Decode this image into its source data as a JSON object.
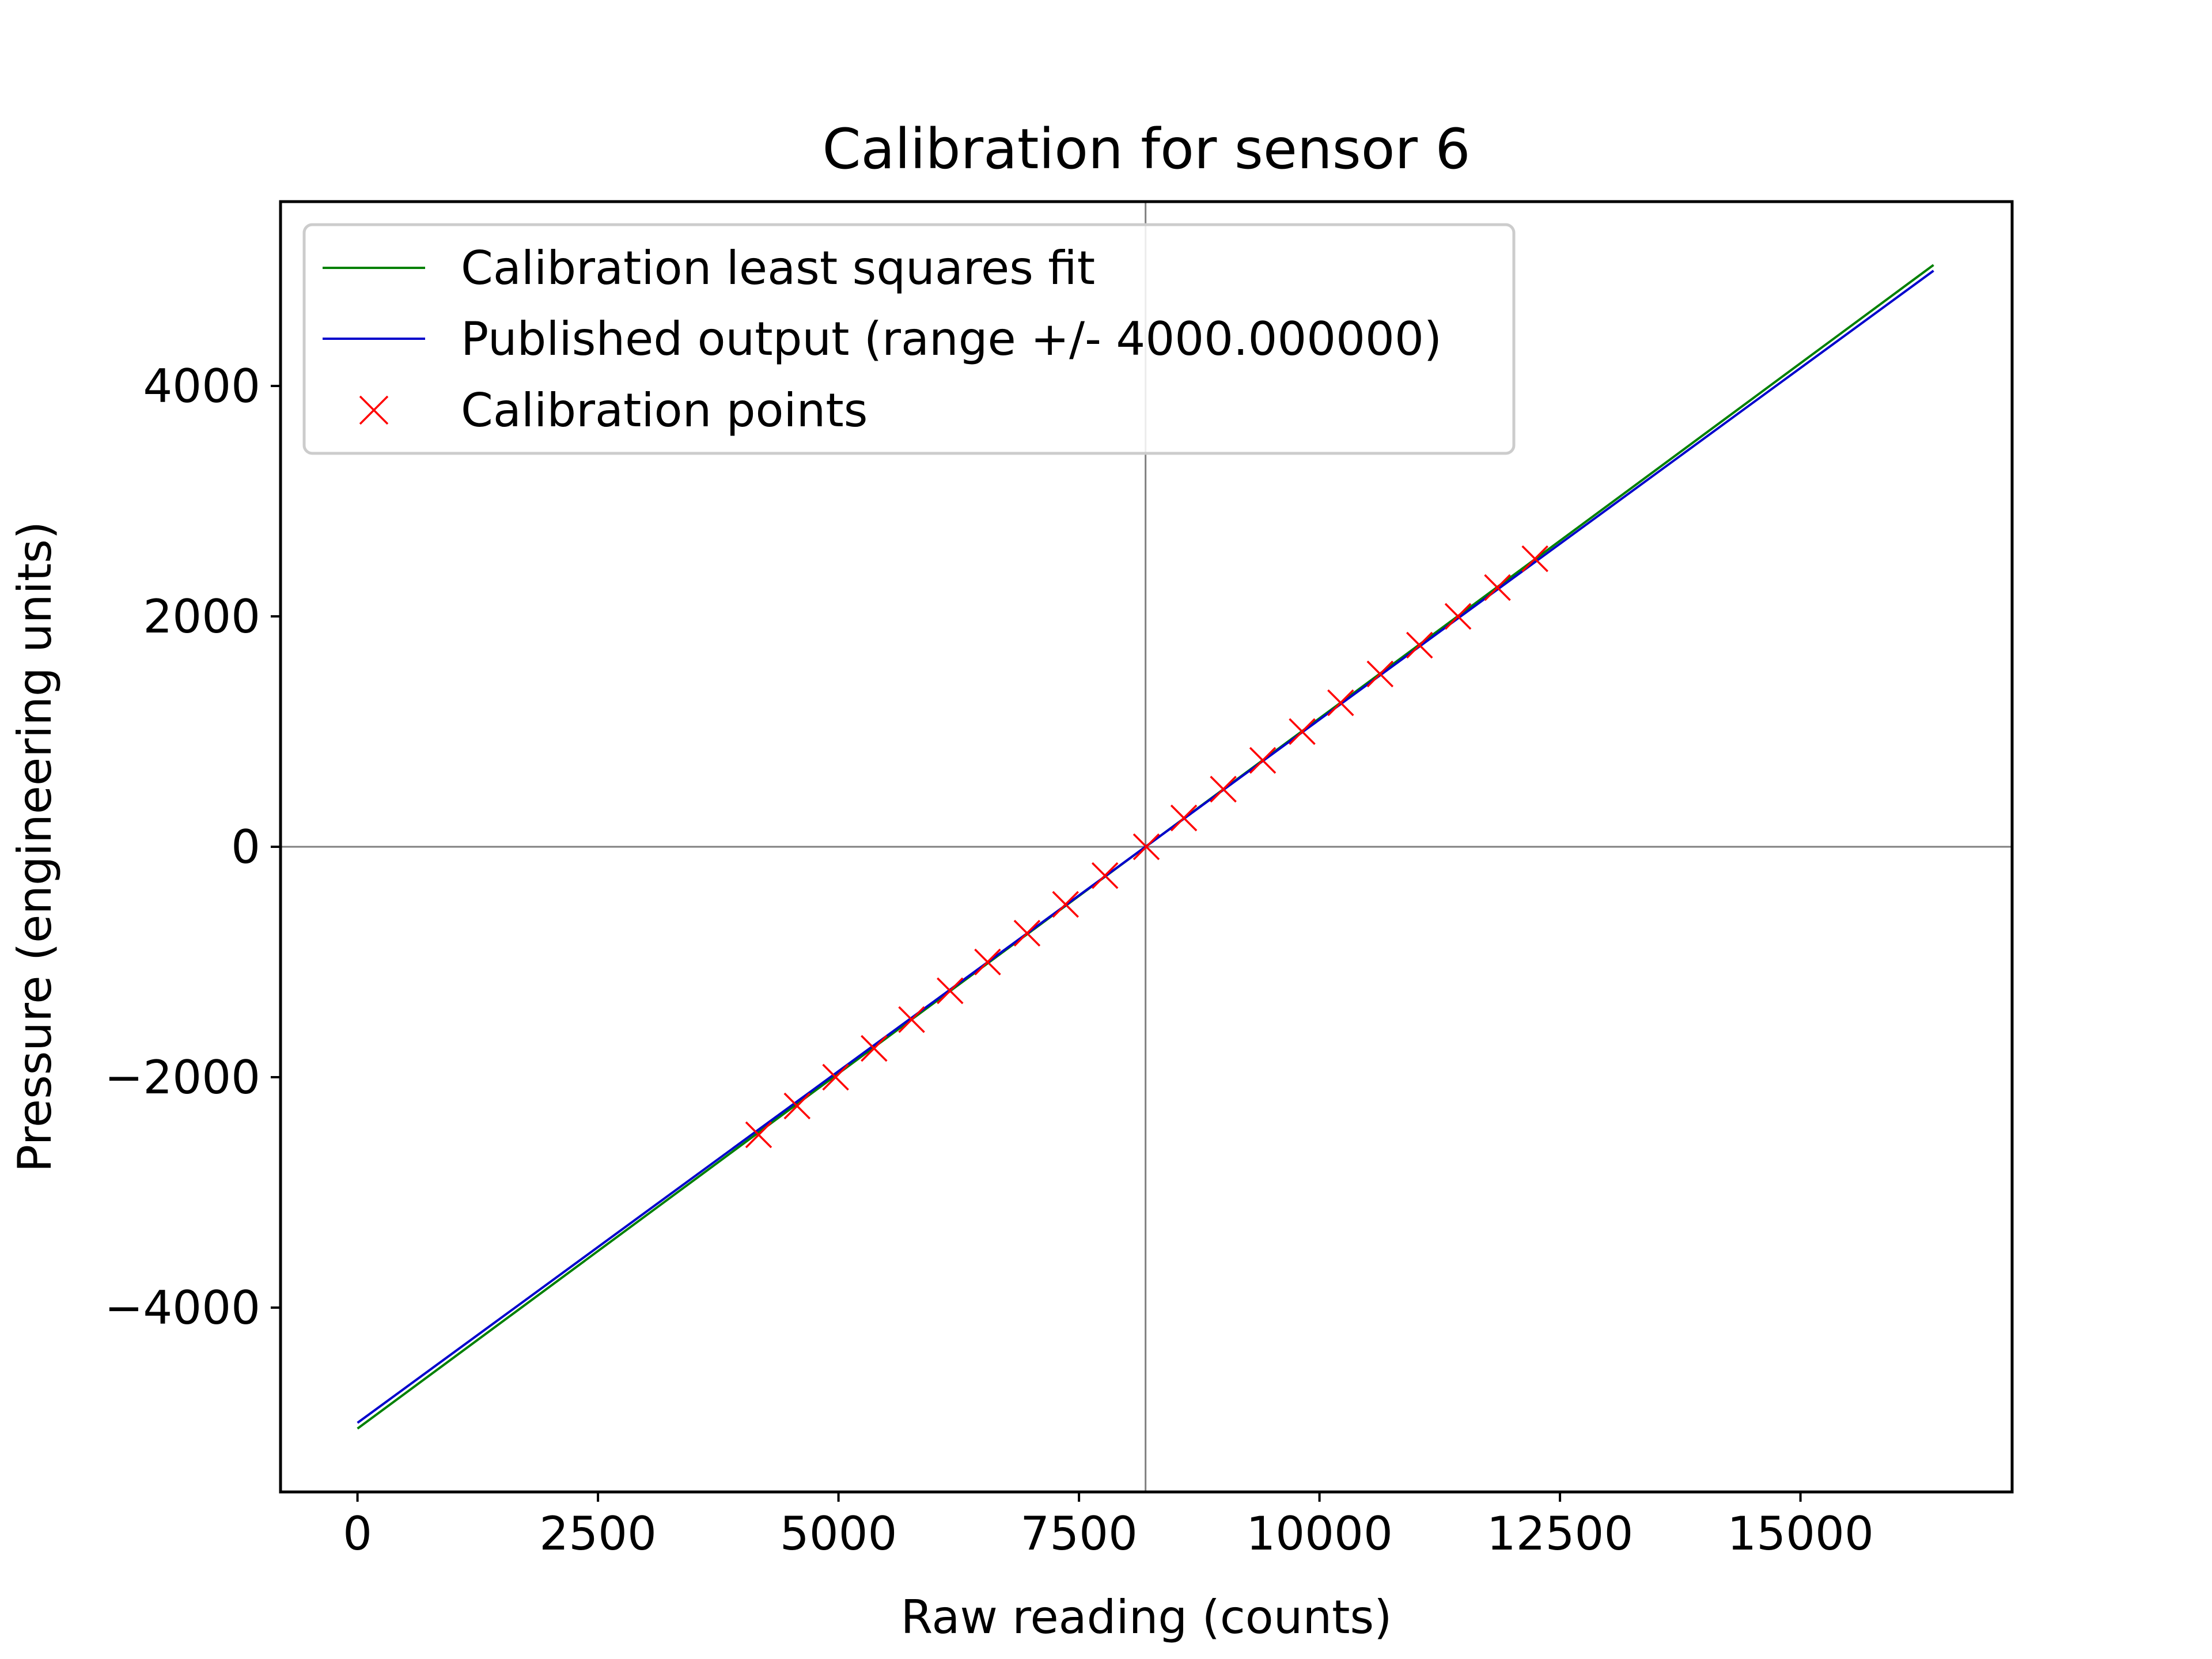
{
  "chart_data": {
    "type": "line",
    "title": "Calibration for sensor 6",
    "xlabel": "Raw reading (counts)",
    "ylabel": "Pressure (engineering units)",
    "xlim": [
      -800,
      17200
    ],
    "ylim": [
      -5600,
      5600
    ],
    "grid": false,
    "legend_position": "upper-left",
    "x_ticks": [
      0,
      2500,
      5000,
      7500,
      10000,
      12500,
      15000
    ],
    "x_tick_labels": [
      "0",
      "2500",
      "5000",
      "7500",
      "10000",
      "12500",
      "15000"
    ],
    "y_ticks": [
      -4000,
      -2000,
      0,
      2000,
      4000
    ],
    "y_tick_labels": [
      "−4000",
      "−2000",
      "0",
      "2000",
      "4000"
    ],
    "reference_lines": {
      "x": 8192,
      "y": 0,
      "color": "#808080"
    },
    "series": [
      {
        "name": "Calibration least squares fit",
        "kind": "line",
        "color": "#008000",
        "x": [
          0,
          16383
        ],
        "y": [
          -5050,
          5050
        ]
      },
      {
        "name": "Published output (range +/- 4000.000000)",
        "kind": "line",
        "color": "#0000cc",
        "x": [
          0,
          16383
        ],
        "y": [
          -5000,
          5000
        ]
      },
      {
        "name": "Calibration points",
        "kind": "scatter",
        "marker": "x",
        "color": "#ff0000",
        "x": [
          4170,
          4570,
          4970,
          5370,
          5760,
          6160,
          6550,
          6960,
          7360,
          7770,
          8200,
          8590,
          9000,
          9410,
          9820,
          10220,
          10630,
          11040,
          11440,
          11850,
          12240
        ],
        "y": [
          -2500,
          -2250,
          -2000,
          -1750,
          -1500,
          -1250,
          -1000,
          -750,
          -500,
          -250,
          0,
          250,
          500,
          750,
          1000,
          1250,
          1500,
          1750,
          2000,
          2250,
          2500
        ]
      }
    ]
  }
}
